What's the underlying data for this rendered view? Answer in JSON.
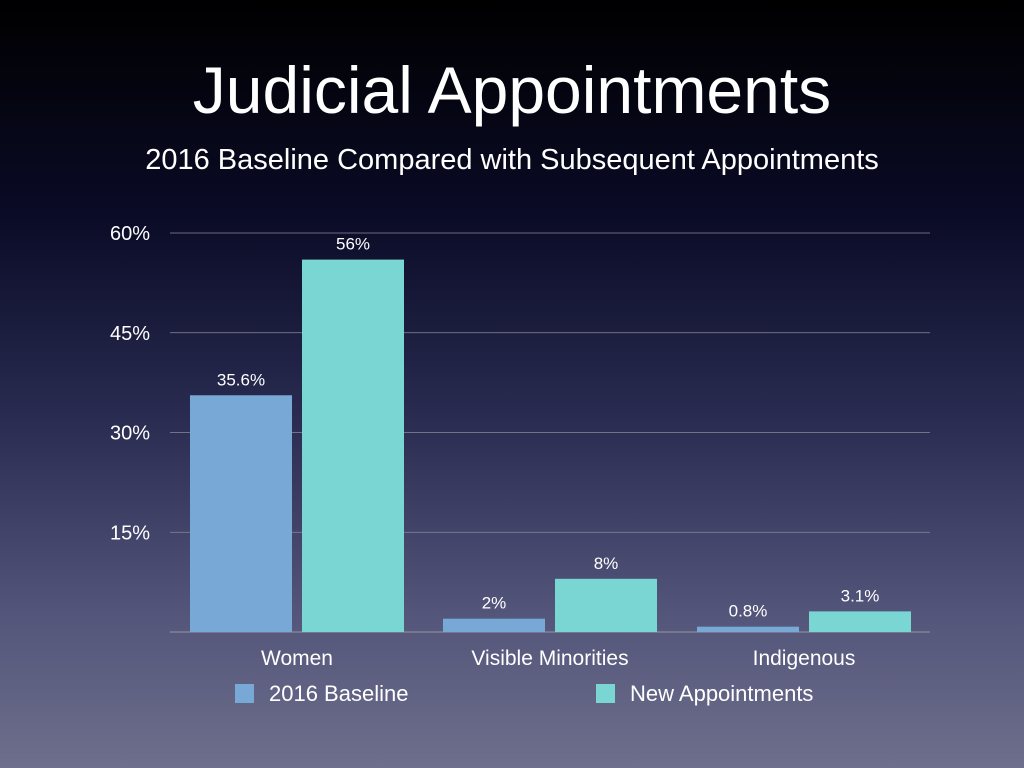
{
  "slide": {
    "title": "Judicial Appointments",
    "subtitle": "2016 Baseline Compared with Subsequent Appointments"
  },
  "chart_data": {
    "type": "bar",
    "title": "Judicial Appointments",
    "subtitle": "2016 Baseline Compared with Subsequent Appointments",
    "categories": [
      "Women",
      "Visible Minorities",
      "Indigenous"
    ],
    "series": [
      {
        "name": "2016 Baseline",
        "values": [
          35.6,
          2,
          0.8
        ],
        "labels": [
          "35.6%",
          "2%",
          "0.8%"
        ],
        "color": "#78a9d6"
      },
      {
        "name": "New Appointments",
        "values": [
          56,
          8,
          3.1
        ],
        "labels": [
          "56%",
          "8%",
          "3.1%"
        ],
        "color": "#79d6d3"
      }
    ],
    "ylim": [
      0,
      60
    ],
    "yticks": [
      0,
      15,
      30,
      45,
      60
    ],
    "ytick_labels": [
      "",
      "15%",
      "30%",
      "45%",
      "60%"
    ],
    "grid": true,
    "legend": "bottom",
    "grid_color": "#8a8a9a"
  }
}
